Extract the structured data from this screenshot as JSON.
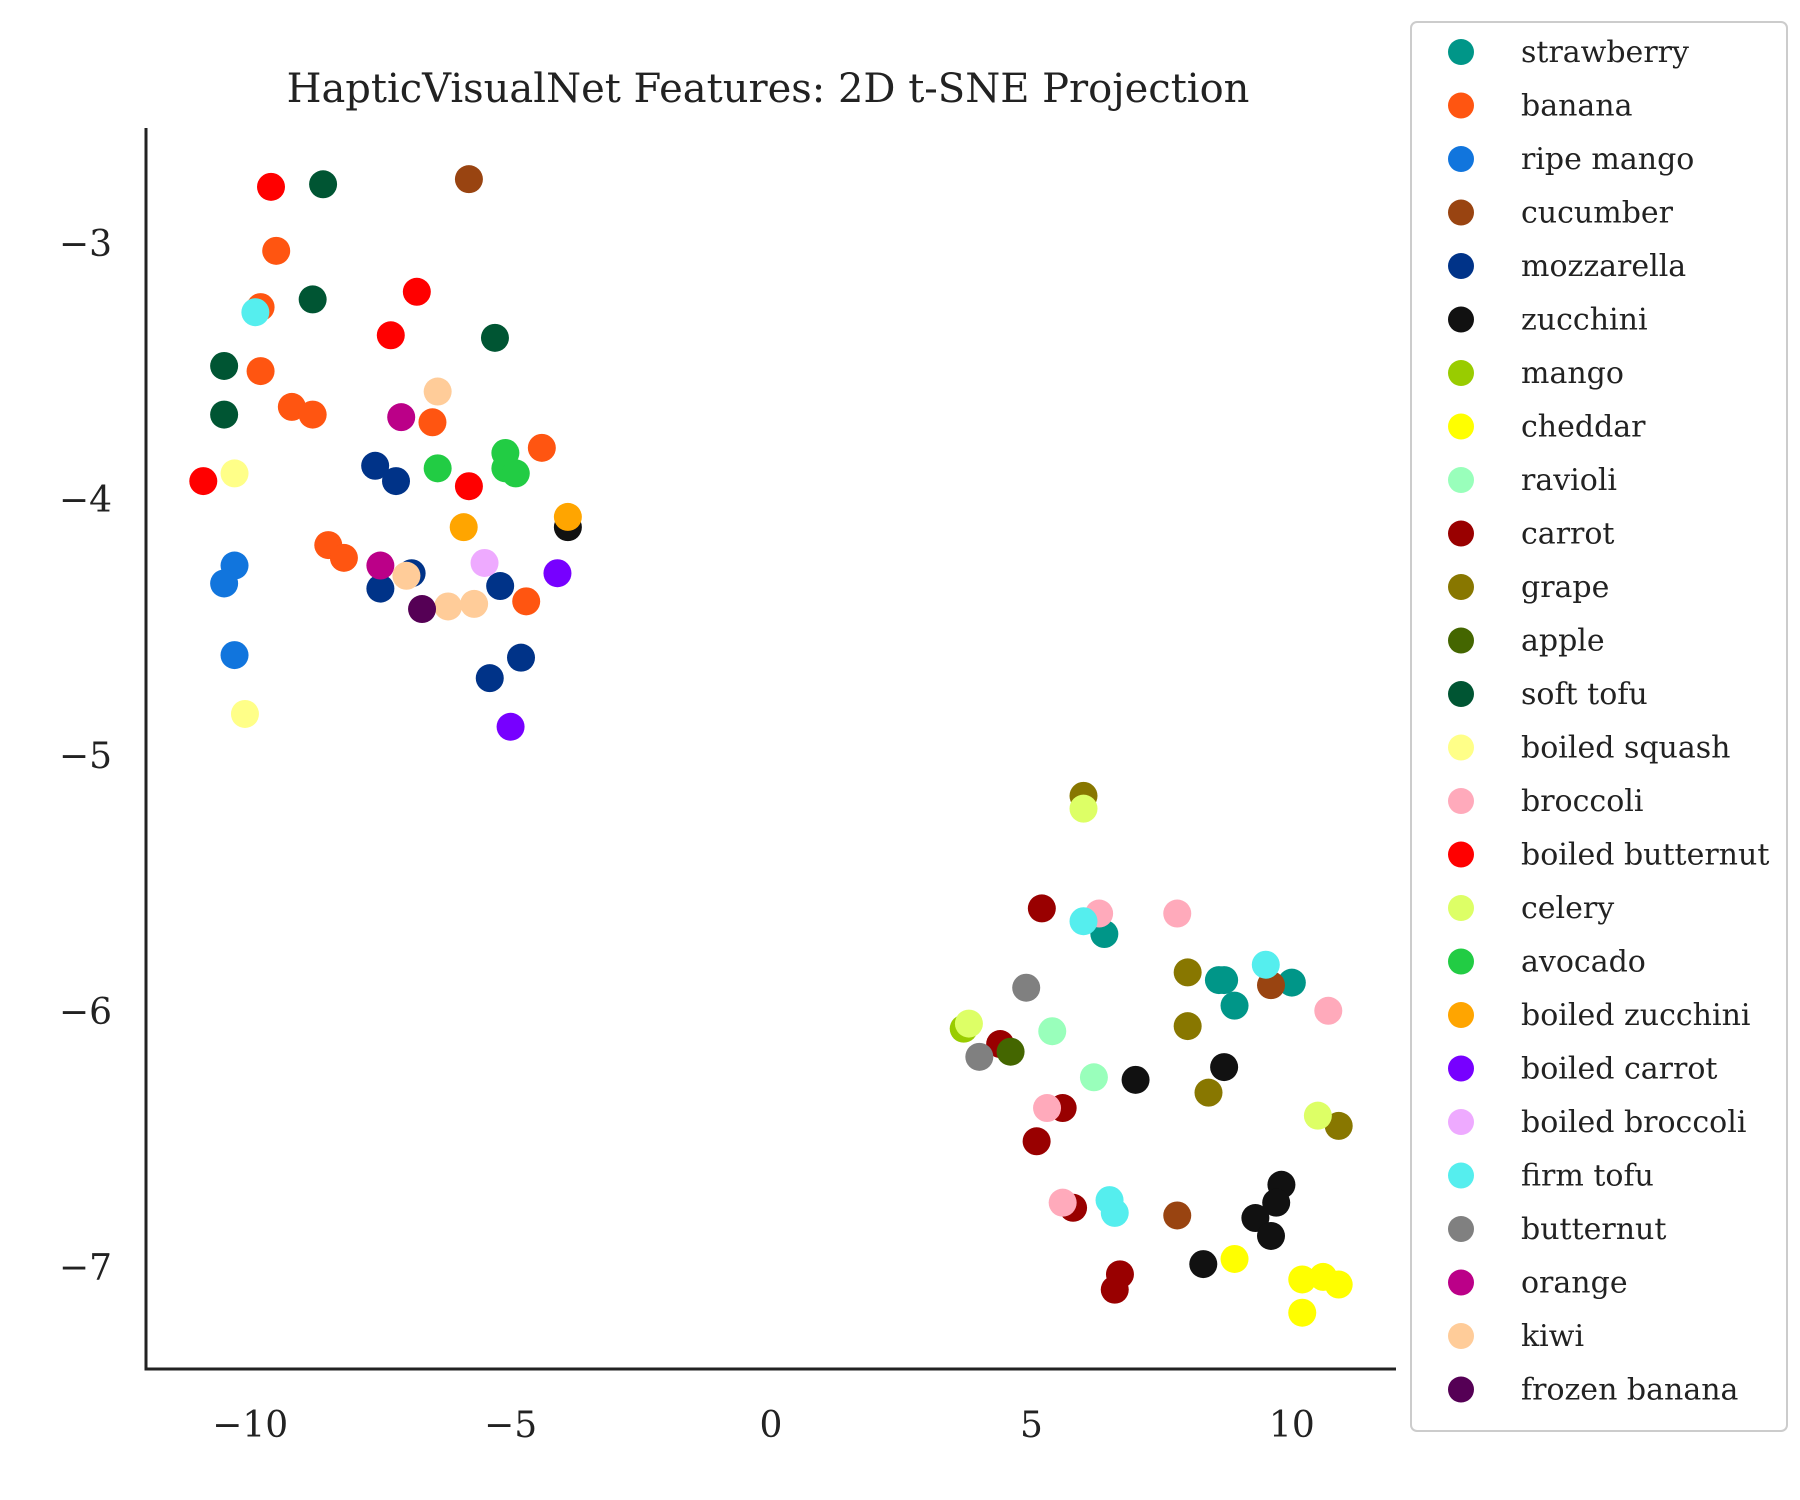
{
  "chart_data": {
    "type": "scatter",
    "title": "HapticVisualNet Features: 2D t-SNE Projection",
    "xlabel": "",
    "ylabel": "",
    "xlim": [
      -12,
      12
    ],
    "ylim": [
      -7.4,
      -2.55
    ],
    "xticks": [
      -10,
      -5,
      0,
      5,
      10
    ],
    "yticks": [
      -3,
      -4,
      -5,
      -6,
      -7
    ],
    "xtick_labels": [
      "−10",
      "−5",
      "0",
      "5",
      "10"
    ],
    "ytick_labels": [
      "−3",
      "−4",
      "−5",
      "−6",
      "−7"
    ],
    "grid": false,
    "legend": "outside-right",
    "series": [
      {
        "name": "strawberry",
        "color": "#009688",
        "points": [
          [
            6.4,
            -5.7
          ],
          [
            8.6,
            -5.88
          ],
          [
            8.7,
            -5.88
          ],
          [
            8.9,
            -5.98
          ],
          [
            10.0,
            -5.89
          ]
        ]
      },
      {
        "name": "banana",
        "color": "#FF5511",
        "points": [
          [
            -9.5,
            -3.03
          ],
          [
            -9.8,
            -3.25
          ],
          [
            -9.8,
            -3.5
          ],
          [
            -9.2,
            -3.64
          ],
          [
            -8.8,
            -3.67
          ],
          [
            -6.5,
            -3.7
          ],
          [
            -4.4,
            -3.8
          ],
          [
            -8.5,
            -4.18
          ],
          [
            -8.2,
            -4.23
          ],
          [
            -4.7,
            -4.4
          ]
        ]
      },
      {
        "name": "ripe mango",
        "color": "#1175DD",
        "points": [
          [
            -10.3,
            -4.26
          ],
          [
            -10.5,
            -4.33
          ],
          [
            -10.3,
            -4.61
          ]
        ]
      },
      {
        "name": "cucumber",
        "color": "#994411",
        "points": [
          [
            -5.8,
            -2.75
          ],
          [
            9.6,
            -5.9
          ],
          [
            7.8,
            -6.8
          ]
        ]
      },
      {
        "name": "mozzarella",
        "color": "#003388",
        "points": [
          [
            -7.6,
            -3.87
          ],
          [
            -7.2,
            -3.93
          ],
          [
            -6.9,
            -4.29
          ],
          [
            -7.5,
            -4.35
          ],
          [
            -5.2,
            -4.34
          ],
          [
            -4.8,
            -4.62
          ],
          [
            -5.4,
            -4.7
          ]
        ]
      },
      {
        "name": "zucchini",
        "color": "#111111",
        "points": [
          [
            -3.9,
            -4.11
          ],
          [
            7.0,
            -6.27
          ],
          [
            8.7,
            -6.22
          ],
          [
            9.8,
            -6.68
          ],
          [
            9.7,
            -6.75
          ],
          [
            9.3,
            -6.81
          ],
          [
            9.6,
            -6.88
          ],
          [
            8.3,
            -6.99
          ]
        ]
      },
      {
        "name": "mango",
        "color": "#99CC00",
        "points": [
          [
            3.7,
            -6.07
          ]
        ]
      },
      {
        "name": "cheddar",
        "color": "#FFFF00",
        "points": [
          [
            8.9,
            -6.97
          ],
          [
            10.2,
            -7.05
          ],
          [
            10.6,
            -7.04
          ],
          [
            10.9,
            -7.07
          ],
          [
            10.2,
            -7.18
          ]
        ]
      },
      {
        "name": "ravioli",
        "color": "#99FFBB",
        "points": [
          [
            5.4,
            -6.08
          ],
          [
            6.2,
            -6.26
          ]
        ]
      },
      {
        "name": "carrot",
        "color": "#990000",
        "points": [
          [
            5.2,
            -5.6
          ],
          [
            4.4,
            -6.13
          ],
          [
            5.6,
            -6.38
          ],
          [
            5.1,
            -6.51
          ],
          [
            5.8,
            -6.77
          ],
          [
            6.7,
            -7.03
          ],
          [
            6.6,
            -7.09
          ]
        ]
      },
      {
        "name": "grape",
        "color": "#887700",
        "points": [
          [
            6.0,
            -5.16
          ],
          [
            8.0,
            -5.85
          ],
          [
            8.0,
            -6.06
          ],
          [
            8.4,
            -6.32
          ],
          [
            10.9,
            -6.45
          ]
        ]
      },
      {
        "name": "apple",
        "color": "#446600",
        "points": [
          [
            4.6,
            -6.16
          ]
        ]
      },
      {
        "name": "soft tofu",
        "color": "#005533",
        "points": [
          [
            -8.6,
            -2.77
          ],
          [
            -8.8,
            -3.22
          ],
          [
            -5.3,
            -3.37
          ],
          [
            -10.5,
            -3.48
          ],
          [
            -10.5,
            -3.67
          ]
        ]
      },
      {
        "name": "boiled squash",
        "color": "#FFFF88",
        "points": [
          [
            -10.3,
            -3.9
          ],
          [
            -10.1,
            -4.84
          ]
        ]
      },
      {
        "name": "broccoli",
        "color": "#FFAABB",
        "points": [
          [
            6.3,
            -5.62
          ],
          [
            7.8,
            -5.62
          ],
          [
            10.7,
            -6.0
          ],
          [
            5.3,
            -6.38
          ],
          [
            5.6,
            -6.75
          ]
        ]
      },
      {
        "name": "boiled butternut",
        "color": "#FF0000",
        "points": [
          [
            -9.6,
            -2.78
          ],
          [
            -6.8,
            -3.19
          ],
          [
            -7.3,
            -3.36
          ],
          [
            -10.9,
            -3.93
          ],
          [
            -5.8,
            -3.95
          ]
        ]
      },
      {
        "name": "celery",
        "color": "#DDFF66",
        "points": [
          [
            6.0,
            -5.21
          ],
          [
            3.8,
            -6.05
          ],
          [
            10.5,
            -6.41
          ]
        ]
      },
      {
        "name": "avocado",
        "color": "#22CC44",
        "points": [
          [
            -6.4,
            -3.88
          ],
          [
            -5.1,
            -3.82
          ],
          [
            -5.1,
            -3.88
          ],
          [
            -4.9,
            -3.9
          ]
        ]
      },
      {
        "name": "boiled zucchini",
        "color": "#FFA500",
        "points": [
          [
            -3.9,
            -4.07
          ],
          [
            -5.9,
            -4.11
          ]
        ]
      },
      {
        "name": "boiled carrot",
        "color": "#7700FF",
        "points": [
          [
            -4.1,
            -4.29
          ],
          [
            -5.0,
            -4.89
          ]
        ]
      },
      {
        "name": "boiled broccoli",
        "color": "#EEAAFF",
        "points": [
          [
            -5.5,
            -4.25
          ]
        ]
      },
      {
        "name": "firm tofu",
        "color": "#55EEEE",
        "points": [
          [
            -9.9,
            -3.27
          ],
          [
            6.0,
            -5.65
          ],
          [
            9.5,
            -5.82
          ],
          [
            6.5,
            -6.74
          ],
          [
            6.6,
            -6.79
          ]
        ]
      },
      {
        "name": "butternut",
        "color": "#808080",
        "points": [
          [
            4.9,
            -5.91
          ],
          [
            4.0,
            -6.18
          ]
        ]
      },
      {
        "name": "orange",
        "color": "#BB0088",
        "points": [
          [
            -7.1,
            -3.68
          ],
          [
            -7.5,
            -4.26
          ]
        ]
      },
      {
        "name": "kiwi",
        "color": "#FFCC99",
        "points": [
          [
            -6.4,
            -3.58
          ],
          [
            -7.0,
            -4.3
          ],
          [
            -6.2,
            -4.42
          ],
          [
            -5.7,
            -4.41
          ]
        ]
      },
      {
        "name": "frozen banana",
        "color": "#550055",
        "points": [
          [
            -6.7,
            -4.43
          ]
        ]
      }
    ]
  }
}
